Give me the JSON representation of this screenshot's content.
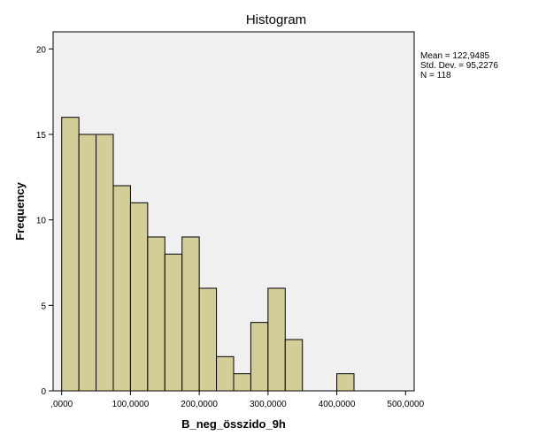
{
  "chart_data": {
    "type": "bar",
    "subtype": "histogram",
    "title": "Histogram",
    "xlabel": "B_neg_összido_9h",
    "ylabel": "Frequency",
    "xlim": [
      -12500,
      512500
    ],
    "ylim": [
      0,
      21
    ],
    "bin_width": 25000,
    "bins": [
      {
        "start": 0,
        "end": 25000,
        "count": 16
      },
      {
        "start": 25000,
        "end": 50000,
        "count": 15
      },
      {
        "start": 50000,
        "end": 75000,
        "count": 15
      },
      {
        "start": 75000,
        "end": 100000,
        "count": 12
      },
      {
        "start": 100000,
        "end": 125000,
        "count": 11
      },
      {
        "start": 125000,
        "end": 150000,
        "count": 9
      },
      {
        "start": 150000,
        "end": 175000,
        "count": 8
      },
      {
        "start": 175000,
        "end": 200000,
        "count": 9
      },
      {
        "start": 200000,
        "end": 225000,
        "count": 6
      },
      {
        "start": 225000,
        "end": 250000,
        "count": 2
      },
      {
        "start": 250000,
        "end": 275000,
        "count": 1
      },
      {
        "start": 275000,
        "end": 300000,
        "count": 4
      },
      {
        "start": 300000,
        "end": 325000,
        "count": 6
      },
      {
        "start": 325000,
        "end": 350000,
        "count": 3
      },
      {
        "start": 400000,
        "end": 425000,
        "count": 1
      }
    ],
    "x_ticks": [
      {
        "value": 0,
        "label": ",0000"
      },
      {
        "value": 100000,
        "label": "100,0000"
      },
      {
        "value": 200000,
        "label": "200,0000"
      },
      {
        "value": 300000,
        "label": "300,0000"
      },
      {
        "value": 400000,
        "label": "400,0000"
      },
      {
        "value": 500000,
        "label": "500,0000"
      }
    ],
    "y_ticks": [
      {
        "value": 0,
        "label": "0"
      },
      {
        "value": 5,
        "label": "5"
      },
      {
        "value": 10,
        "label": "10"
      },
      {
        "value": 15,
        "label": "15"
      },
      {
        "value": 20,
        "label": "20"
      }
    ],
    "stats": [
      "Mean = 122,9485",
      "Std. Dev. = 95,2276",
      "N = 118"
    ],
    "grid": false,
    "legend_placement": "right",
    "colors": {
      "bar_fill": "#d3ce97",
      "bar_stroke": "#000000",
      "plot_bg": "#f0f0f0"
    }
  }
}
